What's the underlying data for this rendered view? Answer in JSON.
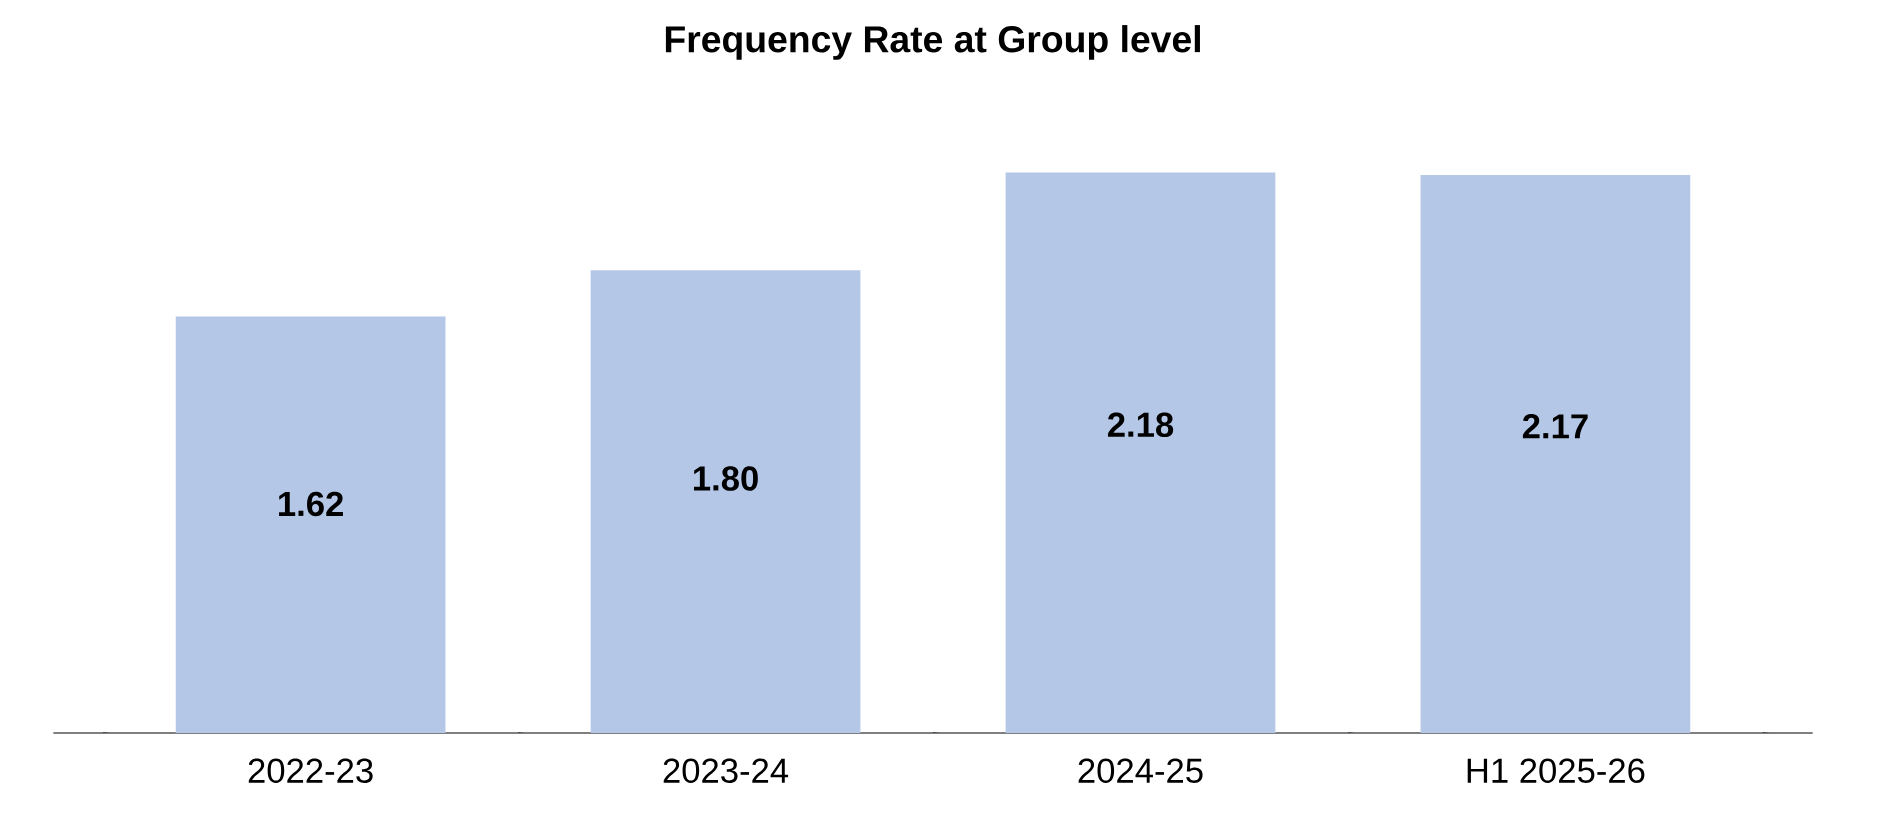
{
  "chart_data": {
    "type": "bar",
    "title": "Frequency Rate at Group level",
    "categories": [
      "2022-23",
      "2023-24",
      "2024-25",
      "H1 2025-26"
    ],
    "values": [
      1.62,
      1.8,
      2.18,
      2.17
    ],
    "value_labels": [
      "1.62",
      "1.80",
      "2.18",
      "2.17"
    ],
    "color": "#b4c7e7",
    "tick_labels": "x"
  }
}
